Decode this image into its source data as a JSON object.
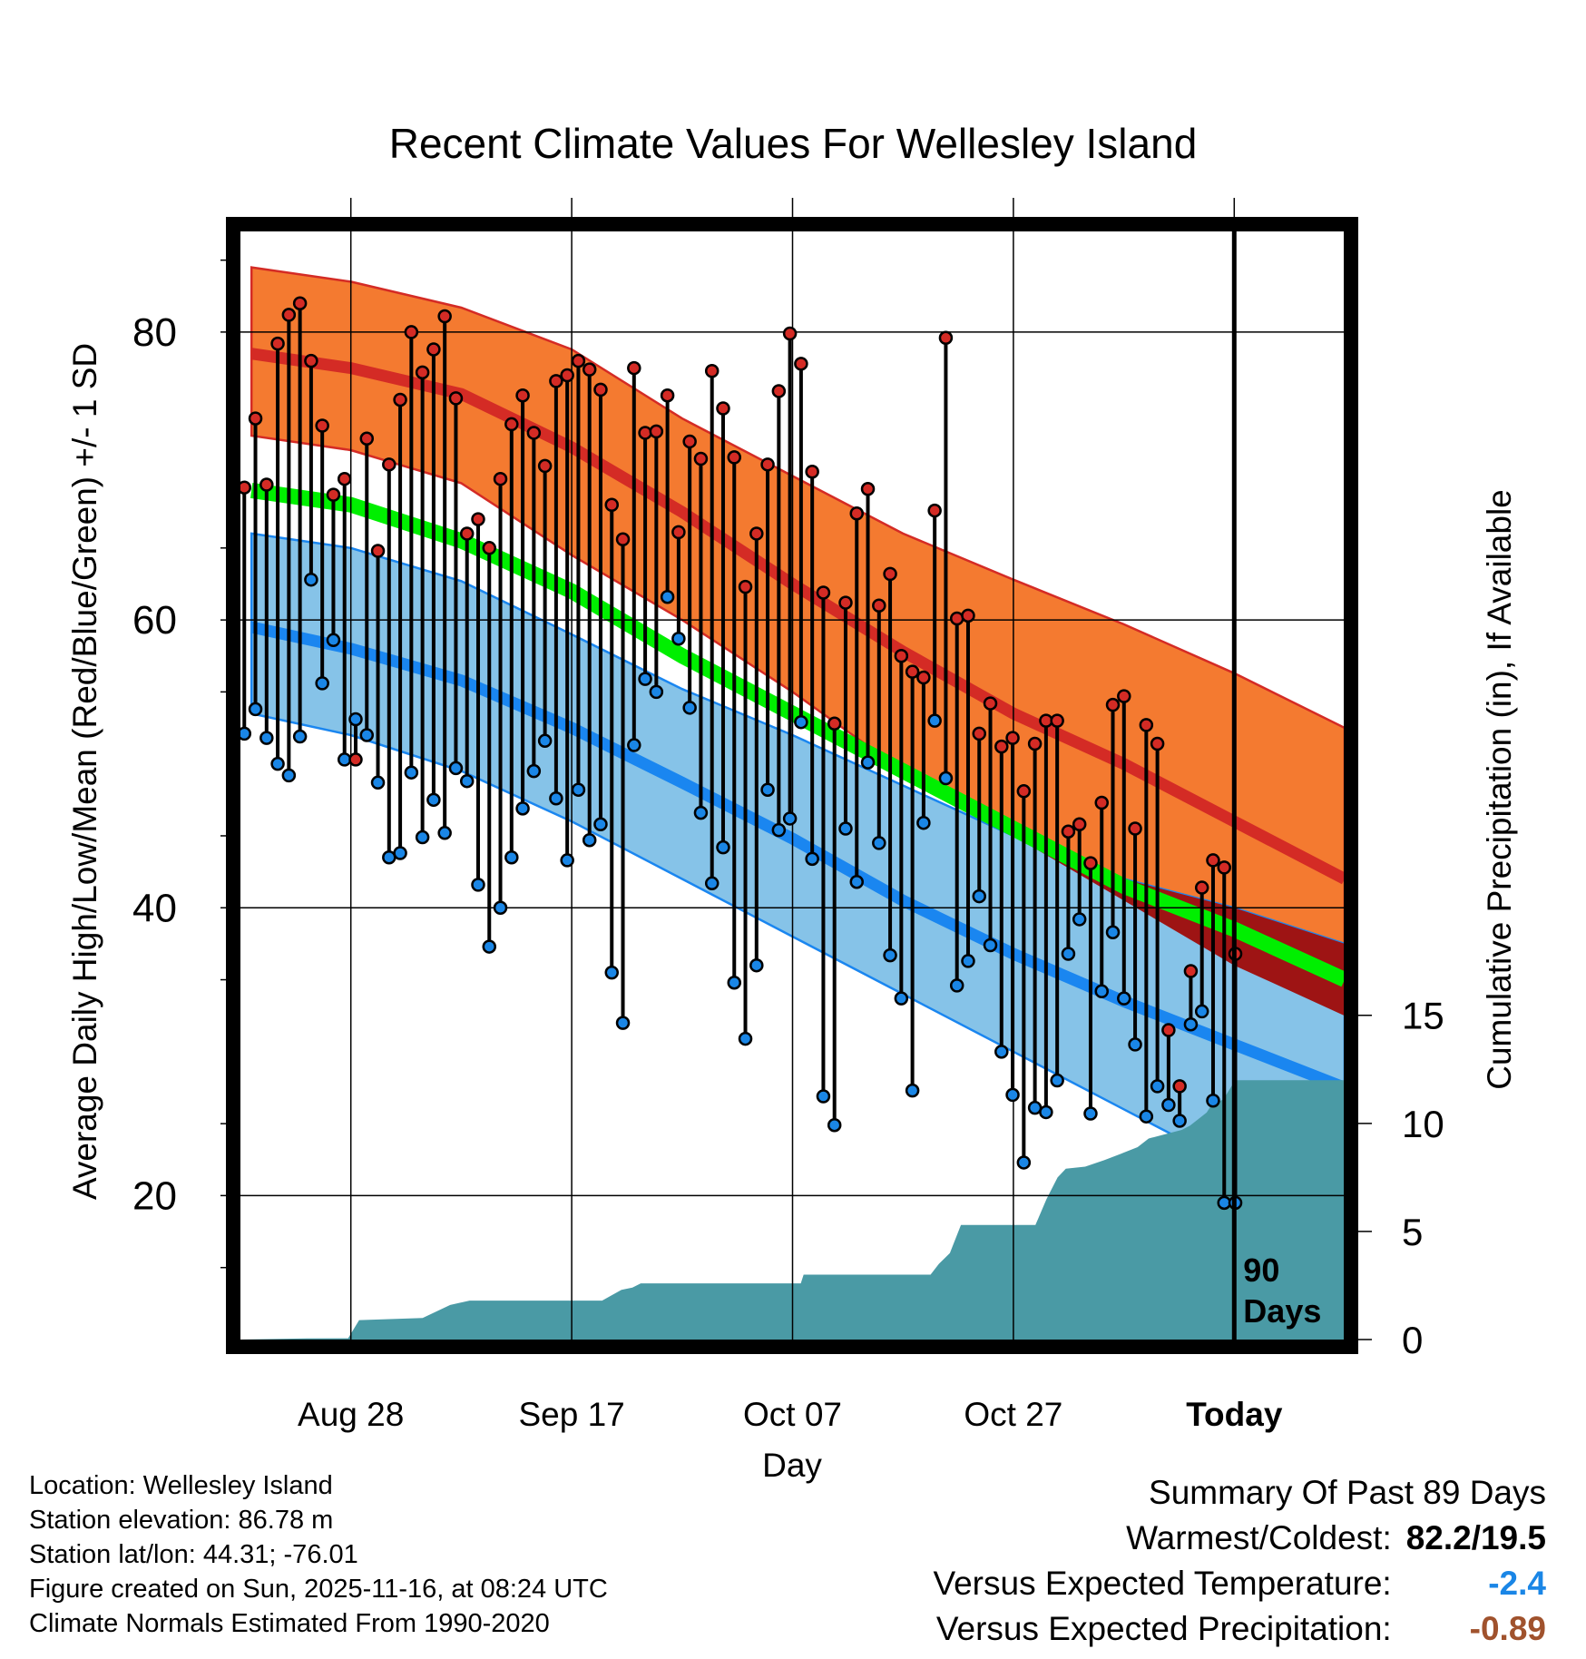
{
  "chart_data": {
    "type": "line",
    "title": "Recent Climate Values For Wellesley Island",
    "xlabel": "Day",
    "ylabel": "Average Daily High/Low/Mean (Red/Blue/Green) +/- 1 SD",
    "y2label": "Cumulative Precipitation (in), If Available",
    "xlim": [
      -11,
      9
    ],
    "ylim": [
      10,
      87.5
    ],
    "y2lim": [
      0,
      51.6
    ],
    "x_ticks": [
      {
        "x": -9,
        "label": "Aug 28"
      },
      {
        "x": -5,
        "label": "Sep 17"
      },
      {
        "x": -1,
        "label": "Oct 07"
      },
      {
        "x": 3,
        "label": "Oct 27"
      },
      {
        "x": 7,
        "label": "Today"
      }
    ],
    "y_ticks": [
      20,
      40,
      60,
      80
    ],
    "y2_ticks": [
      0,
      5,
      10,
      15
    ],
    "period_label": "90 Days",
    "normals": {
      "x": [
        -10.8,
        -9,
        -7,
        -5,
        -3,
        -1,
        1,
        3,
        5,
        7,
        9
      ],
      "high_upper": [
        84.5,
        83.5,
        81.7,
        78.8,
        74.0,
        70.0,
        66.0,
        62.8,
        59.7,
        56.3,
        52.5
      ],
      "high_mean": [
        78.5,
        77.5,
        75.7,
        72.0,
        67.5,
        62.5,
        57.8,
        53.5,
        50.0,
        46.0,
        42.0
      ],
      "high_lower": [
        72.8,
        71.8,
        69.5,
        64.5,
        60.0,
        55.0,
        49.5,
        45.2,
        40.5,
        36.0,
        32.5
      ],
      "mean": [
        69.0,
        68.0,
        65.5,
        62.0,
        57.5,
        53.5,
        49.5,
        45.5,
        41.5,
        38.5,
        35.0
      ],
      "low_upper": [
        66.0,
        65.0,
        62.7,
        59.0,
        55.2,
        52.0,
        48.5,
        45.0,
        42.0,
        40.0,
        37.5
      ],
      "low_mean": [
        59.5,
        58.0,
        55.8,
        52.5,
        48.7,
        44.8,
        40.5,
        36.8,
        33.5,
        30.5,
        27.5
      ],
      "low_lower": [
        53.5,
        52.0,
        49.5,
        46.0,
        42.0,
        38.0,
        34.0,
        30.0,
        26.0,
        22.0,
        18.0
      ]
    },
    "daily": {
      "highs": [
        69.2,
        74.0,
        69.4,
        79.2,
        81.2,
        82.0,
        78.0,
        73.5,
        68.7,
        69.8,
        50.3,
        72.6,
        64.8,
        70.8,
        75.3,
        80.0,
        77.2,
        78.8,
        81.1,
        75.4,
        66.0,
        67.0,
        65.0,
        69.8,
        73.6,
        75.6,
        73.0,
        70.7,
        76.6,
        77.0,
        78.0,
        77.4,
        76.0,
        68.0,
        65.6,
        77.5,
        73.0,
        73.1,
        75.6,
        66.1,
        72.4,
        71.2,
        77.3,
        74.7,
        71.3,
        62.3,
        66.0,
        70.8,
        75.9,
        79.9,
        77.8,
        70.3,
        61.9,
        52.8,
        61.2,
        67.4,
        69.1,
        61.0,
        63.2,
        57.5,
        56.4,
        56.0,
        67.6,
        79.6,
        60.1,
        60.3,
        52.1,
        54.2,
        51.2,
        51.8,
        48.1,
        51.4,
        53.0,
        53.0,
        45.3,
        45.8,
        43.1,
        47.3,
        54.1,
        54.7,
        45.5,
        52.7,
        51.4,
        31.5,
        27.6,
        35.6,
        41.4,
        43.3,
        42.8,
        36.8
      ],
      "lows": [
        52.1,
        53.8,
        51.8,
        50.0,
        49.2,
        51.9,
        62.8,
        55.6,
        58.6,
        50.3,
        53.1,
        52.0,
        48.7,
        43.5,
        43.8,
        49.4,
        44.9,
        47.5,
        45.2,
        49.7,
        48.8,
        41.6,
        37.3,
        40.0,
        43.5,
        46.9,
        49.5,
        51.6,
        47.6,
        43.3,
        48.2,
        44.7,
        45.8,
        35.5,
        32.0,
        51.3,
        55.9,
        55.0,
        61.6,
        58.7,
        53.9,
        46.6,
        41.7,
        44.2,
        34.8,
        30.9,
        36.0,
        48.2,
        45.4,
        46.2,
        52.9,
        43.4,
        26.9,
        24.9,
        45.5,
        41.8,
        50.1,
        44.5,
        36.7,
        33.7,
        27.3,
        45.9,
        53.0,
        49.0,
        34.6,
        36.3,
        40.8,
        37.4,
        30.0,
        27.0,
        22.3,
        26.1,
        25.8,
        28.0,
        36.8,
        39.2,
        25.7,
        34.2,
        38.3,
        33.7,
        30.5,
        25.5,
        27.6,
        26.3,
        25.2,
        31.9,
        32.8,
        26.6,
        19.5,
        19.5
      ]
    },
    "precip": {
      "x": [
        -11,
        -9.8,
        -9.05,
        -8.85,
        -7.7,
        -7.2,
        -6.85,
        -4.45,
        -4.1,
        -3.9,
        -3.75,
        -0.85,
        -0.8,
        1.5,
        1.65,
        1.85,
        2.05,
        3.4,
        3.6,
        3.8,
        3.95,
        4.3,
        4.65,
        4.95,
        5.25,
        5.45,
        5.75,
        6.05,
        6.2,
        6.35,
        6.5,
        6.6,
        6.8,
        7.02,
        9
      ],
      "values": [
        0,
        0.05,
        0.06,
        0.9,
        1.0,
        1.6,
        1.8,
        1.8,
        2.3,
        2.4,
        2.6,
        2.6,
        3.0,
        3.0,
        3.5,
        4.0,
        5.3,
        5.3,
        6.5,
        7.5,
        7.9,
        8.0,
        8.3,
        8.6,
        8.9,
        9.3,
        9.5,
        9.7,
        9.9,
        10.2,
        10.5,
        10.9,
        11.1,
        12.0,
        12.0
      ]
    }
  },
  "footer": {
    "location": "Location: Wellesley Island",
    "elevation": "Station elevation: 86.78 m",
    "latlon": "Station lat/lon: 44.31; -76.01",
    "created": "Figure created on Sun, 2025-11-16, at 08:24 UTC",
    "normals": "Climate Normals Estimated From 1990-2020"
  },
  "summary": {
    "heading": "Summary Of Past 89 Days",
    "warmest_coldest_label": "Warmest/Coldest:",
    "warmest_coldest_value": "82.2/19.5",
    "temp_label": "Versus Expected Temperature:",
    "temp_value": "-2.4",
    "precip_label": "Versus Expected Precipitation:",
    "precip_value": "-0.89",
    "colors": {
      "temp": "#1a86e6",
      "precip": "#a0522d"
    }
  },
  "colors": {
    "high_band": "#f47a30",
    "high_line": "#d42b25",
    "low_band": "#86c3e8",
    "low_line": "#1a86f0",
    "mean_line": "#00ef00",
    "overlap": "#9e1414",
    "precip": "#4a9aa5",
    "high_dot": "#d42b25",
    "low_dot": "#1a86e6"
  }
}
